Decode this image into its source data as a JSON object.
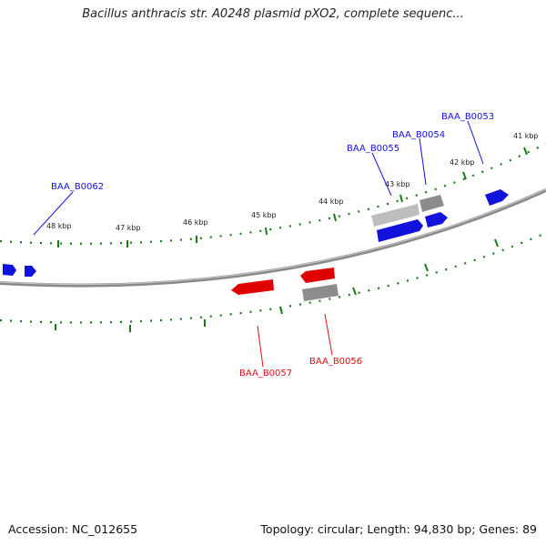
{
  "title": "Bacillus anthracis str. A0248 plasmid pXO2, complete sequenc...",
  "footer": {
    "accession": "Accession: NC_012655",
    "summary": "Topology: circular; Length: 94,830 bp; Genes: 89"
  },
  "colors": {
    "forward": "#1010e0",
    "reverse": "#e00000",
    "ticks": "#1a7a1a",
    "backbone": "#8a8a8a",
    "gray_gene": "#8c8c8c",
    "light_gray_gene": "#bdbdbd"
  },
  "kbp_labels": [
    "41 kbp",
    "42 kbp",
    "43 kbp",
    "44 kbp",
    "45 kbp",
    "46 kbp",
    "47 kbp",
    "48 kbp"
  ],
  "gene_labels": {
    "forward": [
      "BAA_B0053",
      "BAA_B0054",
      "BAA_B0055",
      "BAA_B0062"
    ],
    "reverse": [
      "BAA_B0056",
      "BAA_B0057"
    ]
  }
}
